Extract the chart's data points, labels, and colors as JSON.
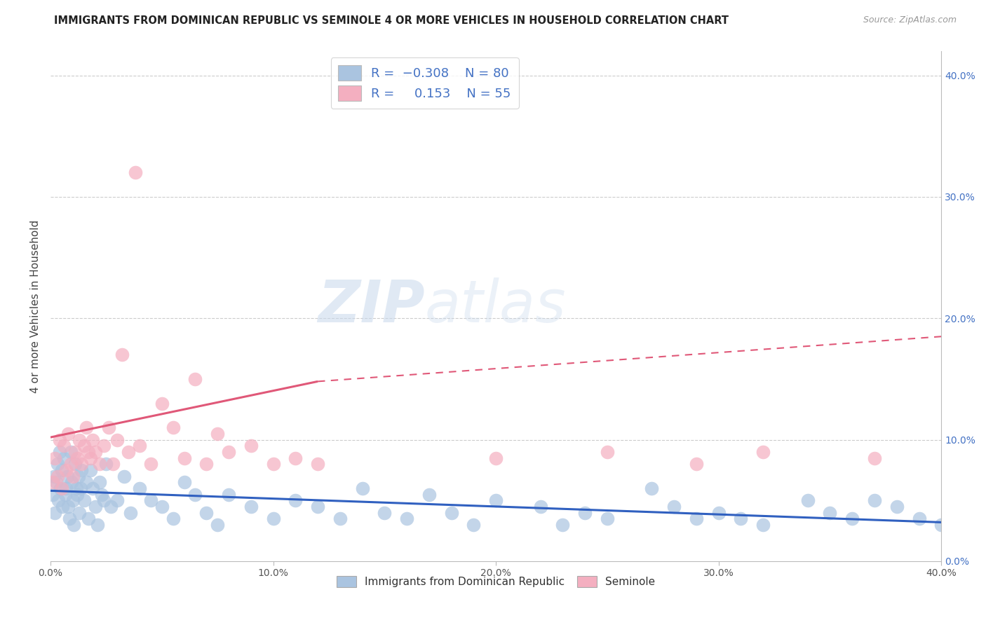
{
  "title": "IMMIGRANTS FROM DOMINICAN REPUBLIC VS SEMINOLE 4 OR MORE VEHICLES IN HOUSEHOLD CORRELATION CHART",
  "source": "Source: ZipAtlas.com",
  "ylabel": "4 or more Vehicles in Household",
  "xlim": [
    0.0,
    40.0
  ],
  "ylim": [
    0.0,
    42.0
  ],
  "watermark_zip": "ZIP",
  "watermark_atlas": "atlas",
  "color_blue": "#aac4e0",
  "color_pink": "#f4afc0",
  "line_color_blue": "#3060c0",
  "line_color_pink": "#e05878",
  "title_fontsize": 10.5,
  "blue_scatter_x": [
    0.1,
    0.15,
    0.2,
    0.25,
    0.3,
    0.35,
    0.4,
    0.45,
    0.5,
    0.55,
    0.6,
    0.65,
    0.7,
    0.75,
    0.8,
    0.85,
    0.9,
    0.95,
    1.0,
    1.05,
    1.1,
    1.15,
    1.2,
    1.25,
    1.3,
    1.35,
    1.4,
    1.5,
    1.6,
    1.7,
    1.8,
    1.9,
    2.0,
    2.1,
    2.2,
    2.3,
    2.4,
    2.5,
    2.7,
    3.0,
    3.3,
    3.6,
    4.0,
    4.5,
    5.0,
    5.5,
    6.0,
    6.5,
    7.0,
    7.5,
    8.0,
    9.0,
    10.0,
    11.0,
    12.0,
    13.0,
    14.0,
    15.0,
    16.0,
    17.0,
    18.0,
    19.0,
    20.0,
    22.0,
    23.0,
    24.0,
    25.0,
    27.0,
    28.0,
    29.0,
    30.0,
    31.0,
    32.0,
    34.0,
    35.0,
    36.0,
    37.0,
    38.0,
    39.0,
    40.0
  ],
  "blue_scatter_y": [
    5.5,
    7.0,
    4.0,
    6.5,
    8.0,
    5.0,
    9.0,
    6.0,
    7.5,
    4.5,
    8.5,
    5.5,
    6.0,
    7.0,
    4.5,
    3.5,
    9.0,
    6.5,
    5.0,
    3.0,
    8.0,
    6.0,
    5.5,
    7.0,
    4.0,
    6.0,
    7.5,
    5.0,
    6.5,
    3.5,
    7.5,
    6.0,
    4.5,
    3.0,
    6.5,
    5.5,
    5.0,
    8.0,
    4.5,
    5.0,
    7.0,
    4.0,
    6.0,
    5.0,
    4.5,
    3.5,
    6.5,
    5.5,
    4.0,
    3.0,
    5.5,
    4.5,
    3.5,
    5.0,
    4.5,
    3.5,
    6.0,
    4.0,
    3.5,
    5.5,
    4.0,
    3.0,
    5.0,
    4.5,
    3.0,
    4.0,
    3.5,
    6.0,
    4.5,
    3.5,
    4.0,
    3.5,
    3.0,
    5.0,
    4.0,
    3.5,
    5.0,
    4.5,
    3.5,
    3.0
  ],
  "pink_scatter_x": [
    0.1,
    0.2,
    0.3,
    0.4,
    0.5,
    0.6,
    0.7,
    0.8,
    0.9,
    1.0,
    1.1,
    1.2,
    1.3,
    1.4,
    1.5,
    1.6,
    1.7,
    1.8,
    1.9,
    2.0,
    2.2,
    2.4,
    2.6,
    2.8,
    3.0,
    3.2,
    3.5,
    3.8,
    4.0,
    4.5,
    5.0,
    5.5,
    6.0,
    6.5,
    7.0,
    7.5,
    8.0,
    9.0,
    10.0,
    11.0,
    12.0,
    20.0,
    25.0,
    29.0,
    32.0,
    37.0
  ],
  "pink_scatter_y": [
    6.5,
    8.5,
    7.0,
    10.0,
    6.0,
    9.5,
    7.5,
    10.5,
    8.0,
    7.0,
    9.0,
    8.5,
    10.0,
    8.0,
    9.5,
    11.0,
    9.0,
    8.5,
    10.0,
    9.0,
    8.0,
    9.5,
    11.0,
    8.0,
    10.0,
    17.0,
    9.0,
    32.0,
    9.5,
    8.0,
    13.0,
    11.0,
    8.5,
    15.0,
    8.0,
    10.5,
    9.0,
    9.5,
    8.0,
    8.5,
    8.0,
    8.5,
    9.0,
    8.0,
    9.0,
    8.5
  ],
  "blue_trend_x0": 0.0,
  "blue_trend_x1": 40.0,
  "blue_trend_y0": 5.8,
  "blue_trend_y1": 3.2,
  "pink_solid_x0": 0.0,
  "pink_solid_x1": 12.0,
  "pink_solid_y0": 10.2,
  "pink_solid_y1": 14.8,
  "pink_dash_x0": 12.0,
  "pink_dash_x1": 40.0,
  "pink_dash_y0": 14.8,
  "pink_dash_y1": 18.5
}
